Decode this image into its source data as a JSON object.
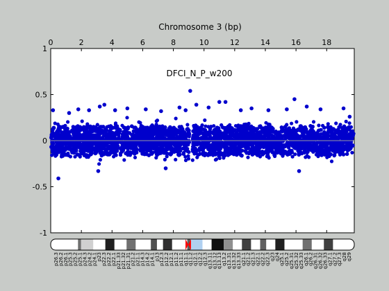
{
  "chart_data": {
    "type": "scatter",
    "title": "Chromosome 3 (bp)",
    "annotation": "DFCI_N_P_w200",
    "xlim": [
      0,
      19.8
    ],
    "ylim": [
      -1,
      1
    ],
    "x_ticks": [
      0,
      2,
      4,
      6,
      8,
      10,
      12,
      14,
      16,
      18
    ],
    "y_ticks": [
      1,
      0.5,
      0,
      -0.5,
      -1
    ],
    "x_axis_position": "top",
    "grid": false,
    "baseline_y": 0,
    "point_color": "#0000cc",
    "baseline_color": "#9a9aa0",
    "band_sd": 0.08,
    "centromere_gap": [
      9.05,
      9.25
    ],
    "outliers": [
      {
        "x": 0.15,
        "y": 0.33
      },
      {
        "x": 0.5,
        "y": -0.41
      },
      {
        "x": 1.2,
        "y": 0.3
      },
      {
        "x": 1.8,
        "y": 0.34
      },
      {
        "x": 2.5,
        "y": 0.33
      },
      {
        "x": 3.2,
        "y": 0.37
      },
      {
        "x": 3.5,
        "y": 0.39
      },
      {
        "x": 4.2,
        "y": 0.33
      },
      {
        "x": 5.0,
        "y": 0.35
      },
      {
        "x": 6.2,
        "y": 0.34
      },
      {
        "x": 7.2,
        "y": 0.32
      },
      {
        "x": 8.4,
        "y": 0.36
      },
      {
        "x": 8.8,
        "y": 0.33
      },
      {
        "x": 9.1,
        "y": 0.54
      },
      {
        "x": 9.5,
        "y": 0.39
      },
      {
        "x": 10.3,
        "y": 0.36
      },
      {
        "x": 11.0,
        "y": 0.42
      },
      {
        "x": 11.4,
        "y": 0.42
      },
      {
        "x": 12.4,
        "y": 0.33
      },
      {
        "x": 13.1,
        "y": 0.35
      },
      {
        "x": 14.2,
        "y": 0.33
      },
      {
        "x": 15.4,
        "y": 0.34
      },
      {
        "x": 15.9,
        "y": 0.45
      },
      {
        "x": 16.7,
        "y": 0.37
      },
      {
        "x": 17.6,
        "y": 0.34
      },
      {
        "x": 19.1,
        "y": 0.35
      },
      {
        "x": 19.5,
        "y": 0.26
      },
      {
        "x": 3.1,
        "y": -0.33
      },
      {
        "x": 7.5,
        "y": -0.3
      },
      {
        "x": 16.2,
        "y": -0.33
      }
    ]
  },
  "ideogram": {
    "bands": [
      {
        "start": 0.0,
        "end": 0.09,
        "color": "#ffffff"
      },
      {
        "start": 0.09,
        "end": 0.1,
        "color": "#707070"
      },
      {
        "start": 0.1,
        "end": 0.14,
        "color": "#d0d0d0"
      },
      {
        "start": 0.14,
        "end": 0.18,
        "color": "#ffffff"
      },
      {
        "start": 0.18,
        "end": 0.21,
        "color": "#202020"
      },
      {
        "start": 0.21,
        "end": 0.25,
        "color": "#ffffff"
      },
      {
        "start": 0.25,
        "end": 0.28,
        "color": "#707070"
      },
      {
        "start": 0.28,
        "end": 0.33,
        "color": "#ffffff"
      },
      {
        "start": 0.33,
        "end": 0.35,
        "color": "#505050"
      },
      {
        "start": 0.35,
        "end": 0.37,
        "color": "#ffffff"
      },
      {
        "start": 0.37,
        "end": 0.4,
        "color": "#303030"
      },
      {
        "start": 0.4,
        "end": 0.45,
        "color": "#ffffff"
      },
      {
        "start": 0.45,
        "end": 0.46,
        "color": "#606060"
      },
      {
        "start": 0.46,
        "end": 0.53,
        "color": "#ffffff"
      },
      {
        "start": 0.53,
        "end": 0.57,
        "color": "#101010"
      },
      {
        "start": 0.57,
        "end": 0.6,
        "color": "#909090"
      },
      {
        "start": 0.6,
        "end": 0.63,
        "color": "#ffffff"
      },
      {
        "start": 0.63,
        "end": 0.66,
        "color": "#404040"
      },
      {
        "start": 0.66,
        "end": 0.69,
        "color": "#ffffff"
      },
      {
        "start": 0.69,
        "end": 0.71,
        "color": "#606060"
      },
      {
        "start": 0.71,
        "end": 0.74,
        "color": "#ffffff"
      },
      {
        "start": 0.74,
        "end": 0.77,
        "color": "#202020"
      },
      {
        "start": 0.77,
        "end": 0.83,
        "color": "#ffffff"
      },
      {
        "start": 0.83,
        "end": 0.86,
        "color": "#707070"
      },
      {
        "start": 0.86,
        "end": 0.9,
        "color": "#ffffff"
      },
      {
        "start": 0.9,
        "end": 0.93,
        "color": "#404040"
      },
      {
        "start": 0.93,
        "end": 1.0,
        "color": "#ffffff"
      }
    ],
    "centromere": {
      "start": 0.444,
      "end": 0.462,
      "color": "#ff0000"
    },
    "heterochromatin": {
      "start": 0.462,
      "end": 0.5,
      "color": "#b0d0f0"
    },
    "labels": [
      "p26.3",
      "p26.2",
      "p26.1",
      "p25.3",
      "p25.2",
      "p25.1",
      "p24.3",
      "p24.2",
      "p24.1",
      "p23",
      "p22.3",
      "p22.2",
      "p22.1",
      "p21.33",
      "p21.32",
      "p21.31",
      "p21.2",
      "p21.1",
      "p14.3",
      "p14.2",
      "p14.1",
      "p13",
      "p12.3",
      "p12.2",
      "p12.1",
      "p11.2",
      "p11.1",
      "q11.1",
      "q11.2",
      "q12.1",
      "q12.2",
      "q12.3",
      "q13.11",
      "q13.12",
      "q13.13",
      "q13.2",
      "q13.31",
      "q13.32",
      "q13.33",
      "q21.1",
      "q21.2",
      "q21.3",
      "q22.1",
      "q22.2",
      "q22.3",
      "q23",
      "q24",
      "q25.1",
      "q25.2",
      "q25.31",
      "q25.32",
      "q25.33",
      "q26.1",
      "q26.2",
      "q26.31",
      "q26.32",
      "q26.33",
      "q27.1",
      "q27.2",
      "q27.3",
      "q28",
      "q29"
    ]
  }
}
